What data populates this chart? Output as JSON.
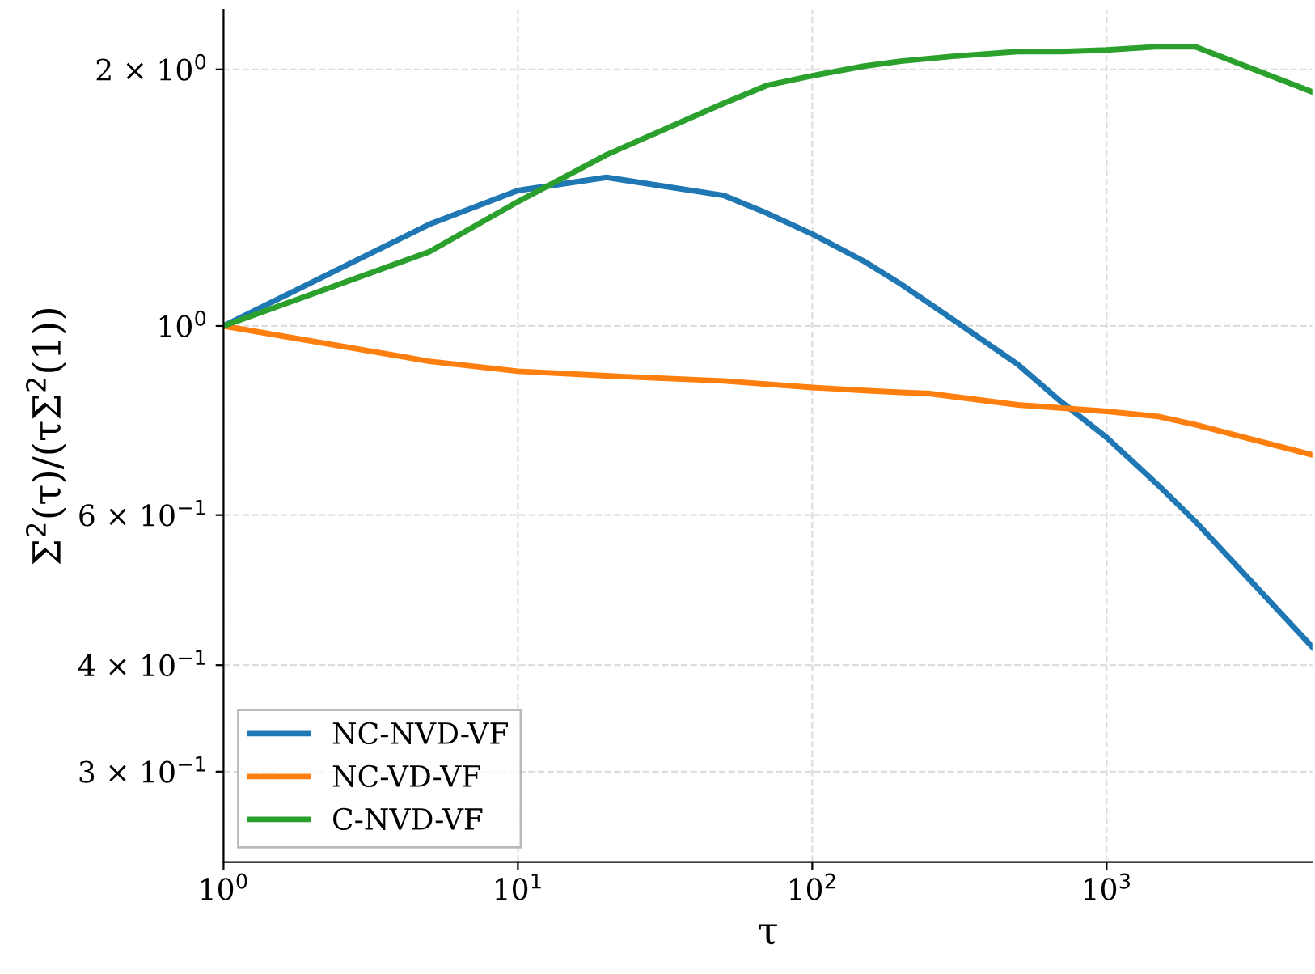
{
  "chart_data": {
    "type": "line",
    "xlabel": "τ",
    "ylabel": "Σ$^{2}$(τ)/(τΣ$^{2}$(1))",
    "log": "xy",
    "grid": true,
    "legend": "bottom left",
    "line_style": "solid",
    "marker": "none",
    "xlim": [
      1,
      5000
    ],
    "ylim": [
      0.235,
      2.35
    ],
    "xticks": [
      {
        "value": 1,
        "label": "10$^{0}$"
      },
      {
        "value": 10,
        "label": "10$^{1}$"
      },
      {
        "value": 100,
        "label": "10$^{2}$"
      },
      {
        "value": 1000,
        "label": "10$^{3}$"
      }
    ],
    "yticks": [
      {
        "value": 0.3,
        "label": "3 × 10$^{−1}$"
      },
      {
        "value": 0.4,
        "label": "4 × 10$^{−1}$"
      },
      {
        "value": 0.6,
        "label": "6 × 10$^{−1}$"
      },
      {
        "value": 1,
        "label": "10$^{0}$"
      },
      {
        "value": 2,
        "label": "2 × 10$^{0}$"
      }
    ],
    "series": [
      {
        "name": "NC-NVD-VF",
        "color": "#1f77b4",
        "x": [
          1,
          5,
          10,
          20,
          50,
          70,
          100,
          150,
          200,
          250,
          300,
          500,
          700,
          1000,
          1500,
          2000,
          5000
        ],
        "values": [
          1,
          1.316,
          1.442,
          1.494,
          1.423,
          1.357,
          1.282,
          1.191,
          1.12,
          1.063,
          1.018,
          0.901,
          0.815,
          0.74,
          0.65,
          0.59,
          0.42
        ]
      },
      {
        "name": "NC-VD-VF",
        "color": "#ff7f0e",
        "x": [
          1,
          5,
          10,
          20,
          50,
          100,
          150,
          200,
          250,
          500,
          1000,
          1500,
          2000,
          5000
        ],
        "values": [
          1,
          0.909,
          0.885,
          0.874,
          0.862,
          0.847,
          0.84,
          0.836,
          0.833,
          0.808,
          0.794,
          0.783,
          0.766,
          0.706
        ]
      },
      {
        "name": "C-NVD-VF",
        "color": "#2ca02c",
        "x": [
          1,
          5,
          10,
          20,
          50,
          70,
          100,
          150,
          200,
          300,
          500,
          700,
          1000,
          1500,
          2000,
          5000
        ],
        "values": [
          1,
          1.222,
          1.399,
          1.588,
          1.825,
          1.915,
          1.966,
          2.018,
          2.045,
          2.072,
          2.099,
          2.099,
          2.108,
          2.127,
          2.127,
          1.882
        ]
      }
    ]
  }
}
